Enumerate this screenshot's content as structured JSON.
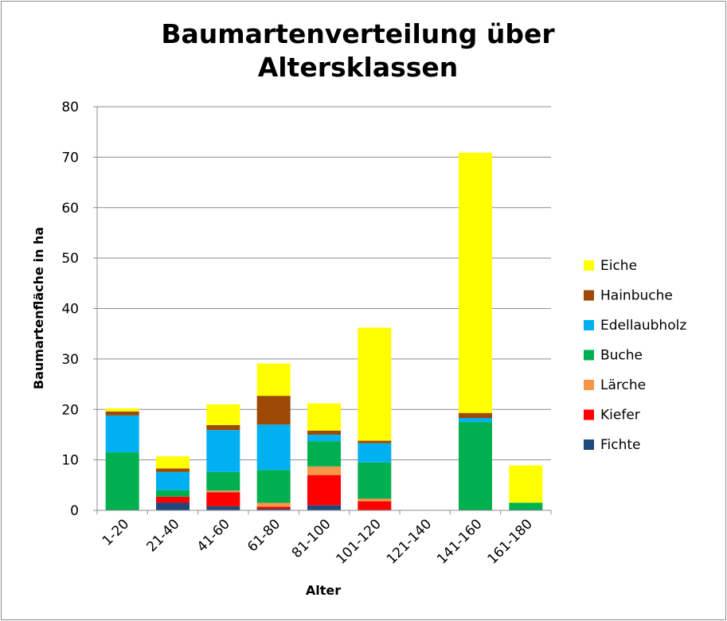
{
  "chart_data": {
    "type": "bar",
    "stacked": true,
    "title_lines": [
      "Baumartenverteilung über",
      "Altersklassen"
    ],
    "xlabel": "Alter",
    "ylabel": "Baumartenfläche in ha",
    "ylim": [
      0,
      80
    ],
    "yticks": [
      0,
      10,
      20,
      30,
      40,
      50,
      60,
      70,
      80
    ],
    "grid": true,
    "legend_position": "right",
    "categories": [
      "1-20",
      "21-40",
      "41-60",
      "61-80",
      "81-100",
      "101-120",
      "121-140",
      "141-160",
      "161-180"
    ],
    "series": [
      {
        "name": "Fichte",
        "color": "#1f497d",
        "values": [
          0,
          1.5,
          0.8,
          0.3,
          1.0,
          0,
          0,
          0,
          0
        ]
      },
      {
        "name": "Kiefer",
        "color": "#ff0000",
        "values": [
          0,
          1.2,
          2.8,
          0.4,
          6.0,
          1.8,
          0,
          0,
          0
        ]
      },
      {
        "name": "Lärche",
        "color": "#f79646",
        "values": [
          0,
          0,
          0.3,
          0.8,
          1.7,
          0.5,
          0,
          0,
          0
        ]
      },
      {
        "name": "Buche",
        "color": "#00b050",
        "values": [
          11.5,
          1.3,
          3.7,
          6.5,
          5.0,
          7.2,
          0,
          17.5,
          1.5
        ]
      },
      {
        "name": "Edellaubholz",
        "color": "#00b0f0",
        "values": [
          7.3,
          3.6,
          8.3,
          9.0,
          1.3,
          3.8,
          0,
          0.8,
          0
        ]
      },
      {
        "name": "Hainbuche",
        "color": "#9c4a06",
        "values": [
          0.8,
          0.7,
          1.0,
          5.7,
          0.8,
          0.5,
          0,
          1.0,
          0
        ]
      },
      {
        "name": "Eiche",
        "color": "#ffff00",
        "values": [
          0.6,
          2.4,
          4.1,
          6.4,
          5.4,
          22.4,
          0,
          51.6,
          7.4
        ]
      }
    ]
  }
}
